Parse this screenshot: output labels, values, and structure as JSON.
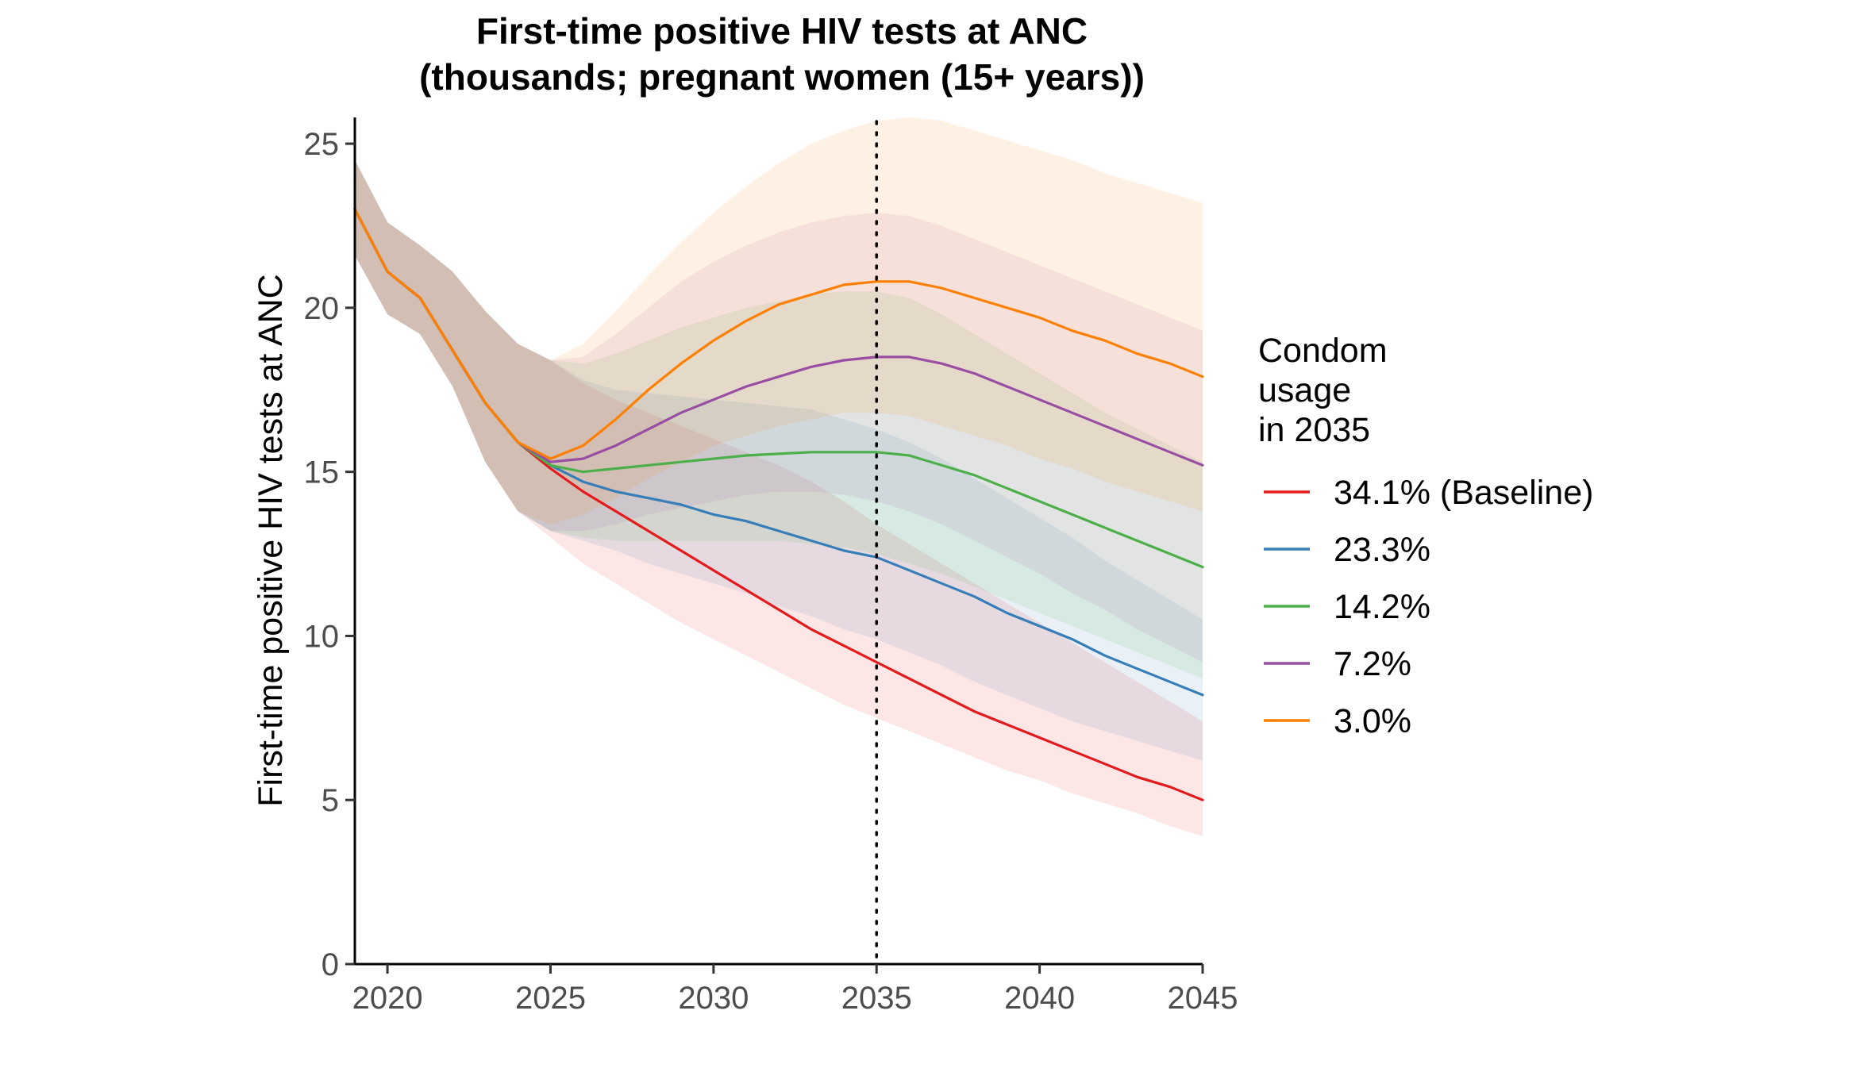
{
  "chart_data": {
    "type": "line",
    "title_lines": [
      "First-time positive HIV tests at ANC",
      "(thousands; pregnant women (15+ years))"
    ],
    "ylabel": "First-time positive HIV tests at ANC",
    "xlabel": "",
    "xlim": [
      2019,
      2045
    ],
    "ylim": [
      0,
      25.8
    ],
    "x_ticks": [
      2020,
      2025,
      2030,
      2035,
      2040,
      2045
    ],
    "y_ticks": [
      0,
      5,
      10,
      15,
      20,
      25
    ],
    "vline_x": 2035,
    "grid": false,
    "legend_position": "right",
    "legend_title_lines": [
      "Condom",
      "usage",
      "in 2035"
    ],
    "series": [
      {
        "name": "34.1% (Baseline)",
        "color": "#e41a1c",
        "x": [
          2019,
          2020,
          2021,
          2022,
          2023,
          2024,
          2025,
          2026,
          2027,
          2028,
          2029,
          2030,
          2031,
          2032,
          2033,
          2034,
          2035,
          2036,
          2037,
          2038,
          2039,
          2040,
          2041,
          2042,
          2043,
          2044,
          2045
        ],
        "values": [
          23.0,
          21.1,
          20.3,
          18.7,
          17.1,
          15.9,
          15.1,
          14.4,
          13.8,
          13.2,
          12.6,
          12.0,
          11.4,
          10.8,
          10.2,
          9.7,
          9.2,
          8.7,
          8.2,
          7.7,
          7.3,
          6.9,
          6.5,
          6.1,
          5.7,
          5.4,
          5.0
        ],
        "lower": [
          21.6,
          19.8,
          19.2,
          17.6,
          15.3,
          13.8,
          13.0,
          12.2,
          11.6,
          11.0,
          10.4,
          9.9,
          9.4,
          8.9,
          8.4,
          7.9,
          7.5,
          7.1,
          6.7,
          6.3,
          5.9,
          5.6,
          5.2,
          4.9,
          4.6,
          4.2,
          3.9
        ],
        "upper": [
          24.5,
          22.6,
          21.9,
          21.1,
          19.9,
          18.9,
          18.4,
          17.7,
          17.2,
          16.8,
          16.4,
          16.0,
          15.6,
          15.2,
          14.7,
          14.1,
          13.4,
          12.8,
          12.2,
          11.6,
          11.0,
          10.4,
          9.8,
          9.2,
          8.6,
          8.0,
          7.4
        ]
      },
      {
        "name": "23.3%",
        "color": "#377eb8",
        "x": [
          2019,
          2020,
          2021,
          2022,
          2023,
          2024,
          2025,
          2026,
          2027,
          2028,
          2029,
          2030,
          2031,
          2032,
          2033,
          2034,
          2035,
          2036,
          2037,
          2038,
          2039,
          2040,
          2041,
          2042,
          2043,
          2044,
          2045
        ],
        "values": [
          23.0,
          21.1,
          20.3,
          18.7,
          17.1,
          15.9,
          15.2,
          14.7,
          14.4,
          14.2,
          14.0,
          13.7,
          13.5,
          13.2,
          12.9,
          12.6,
          12.4,
          12.0,
          11.6,
          11.2,
          10.7,
          10.3,
          9.9,
          9.4,
          9.0,
          8.6,
          8.2
        ],
        "lower": [
          21.6,
          19.8,
          19.2,
          17.6,
          15.3,
          13.8,
          13.2,
          12.9,
          12.6,
          12.2,
          11.9,
          11.6,
          11.3,
          10.9,
          10.6,
          10.2,
          9.9,
          9.5,
          9.1,
          8.6,
          8.2,
          7.8,
          7.4,
          7.1,
          6.8,
          6.5,
          6.2
        ],
        "upper": [
          24.5,
          22.6,
          21.9,
          21.1,
          19.9,
          18.9,
          18.4,
          17.8,
          17.5,
          17.4,
          17.3,
          17.2,
          17.1,
          17.0,
          16.9,
          16.6,
          16.3,
          15.9,
          15.4,
          14.8,
          14.2,
          13.6,
          13.0,
          12.3,
          11.7,
          11.1,
          10.5
        ]
      },
      {
        "name": "14.2%",
        "color": "#4daf4a",
        "x": [
          2019,
          2020,
          2021,
          2022,
          2023,
          2024,
          2025,
          2026,
          2027,
          2028,
          2029,
          2030,
          2031,
          2032,
          2033,
          2034,
          2035,
          2036,
          2037,
          2038,
          2039,
          2040,
          2041,
          2042,
          2043,
          2044,
          2045
        ],
        "values": [
          23.0,
          21.1,
          20.3,
          18.7,
          17.1,
          15.9,
          15.2,
          15.0,
          15.1,
          15.2,
          15.3,
          15.4,
          15.5,
          15.55,
          15.6,
          15.6,
          15.6,
          15.5,
          15.2,
          14.9,
          14.5,
          14.1,
          13.7,
          13.3,
          12.9,
          12.5,
          12.1
        ],
        "lower": [
          21.6,
          19.8,
          19.2,
          17.6,
          15.3,
          13.8,
          13.2,
          13.0,
          12.9,
          12.9,
          12.9,
          12.9,
          12.9,
          12.9,
          12.8,
          12.7,
          12.5,
          12.2,
          11.9,
          11.5,
          11.1,
          10.7,
          10.3,
          9.9,
          9.5,
          9.1,
          8.7
        ],
        "upper": [
          24.5,
          22.6,
          21.9,
          21.1,
          19.9,
          18.9,
          18.4,
          18.3,
          18.6,
          19.0,
          19.4,
          19.7,
          20.0,
          20.2,
          20.4,
          20.5,
          20.5,
          20.3,
          19.8,
          19.2,
          18.6,
          18.0,
          17.4,
          16.8,
          16.3,
          15.8,
          15.3
        ]
      },
      {
        "name": "7.2%",
        "color": "#984ea3",
        "x": [
          2019,
          2020,
          2021,
          2022,
          2023,
          2024,
          2025,
          2026,
          2027,
          2028,
          2029,
          2030,
          2031,
          2032,
          2033,
          2034,
          2035,
          2036,
          2037,
          2038,
          2039,
          2040,
          2041,
          2042,
          2043,
          2044,
          2045
        ],
        "values": [
          23.0,
          21.1,
          20.3,
          18.7,
          17.1,
          15.9,
          15.3,
          15.4,
          15.8,
          16.3,
          16.8,
          17.2,
          17.6,
          17.9,
          18.2,
          18.4,
          18.5,
          18.5,
          18.3,
          18.0,
          17.6,
          17.2,
          16.8,
          16.4,
          16.0,
          15.6,
          15.2
        ],
        "lower": [
          21.6,
          19.8,
          19.2,
          17.6,
          15.3,
          13.8,
          13.2,
          13.2,
          13.4,
          13.7,
          13.9,
          14.1,
          14.3,
          14.4,
          14.4,
          14.3,
          14.1,
          13.8,
          13.4,
          12.9,
          12.4,
          11.9,
          11.3,
          10.8,
          10.2,
          9.7,
          9.2
        ],
        "upper": [
          24.5,
          22.6,
          21.9,
          21.1,
          19.9,
          18.9,
          18.4,
          18.5,
          19.2,
          20.0,
          20.8,
          21.4,
          21.9,
          22.3,
          22.6,
          22.8,
          22.9,
          22.8,
          22.5,
          22.1,
          21.7,
          21.3,
          20.9,
          20.5,
          20.1,
          19.7,
          19.3
        ]
      },
      {
        "name": "3.0%",
        "color": "#ff7f00",
        "x": [
          2019,
          2020,
          2021,
          2022,
          2023,
          2024,
          2025,
          2026,
          2027,
          2028,
          2029,
          2030,
          2031,
          2032,
          2033,
          2034,
          2035,
          2036,
          2037,
          2038,
          2039,
          2040,
          2041,
          2042,
          2043,
          2044,
          2045
        ],
        "values": [
          23.0,
          21.1,
          20.3,
          18.7,
          17.1,
          15.9,
          15.4,
          15.8,
          16.6,
          17.5,
          18.3,
          19.0,
          19.6,
          20.1,
          20.4,
          20.7,
          20.8,
          20.8,
          20.6,
          20.3,
          20.0,
          19.7,
          19.3,
          19.0,
          18.6,
          18.3,
          17.9
        ],
        "lower": [
          21.6,
          19.8,
          19.2,
          17.6,
          15.3,
          13.8,
          13.4,
          13.7,
          14.2,
          14.8,
          15.3,
          15.8,
          16.1,
          16.4,
          16.6,
          16.8,
          16.8,
          16.7,
          16.4,
          16.1,
          15.8,
          15.4,
          15.1,
          14.7,
          14.4,
          14.1,
          13.8
        ],
        "upper": [
          24.5,
          22.6,
          21.9,
          21.1,
          19.9,
          18.9,
          18.4,
          18.9,
          19.9,
          21.0,
          22.0,
          22.9,
          23.7,
          24.4,
          25.0,
          25.4,
          25.7,
          25.8,
          25.7,
          25.4,
          25.1,
          24.8,
          24.5,
          24.1,
          23.8,
          23.5,
          23.2
        ]
      }
    ]
  }
}
